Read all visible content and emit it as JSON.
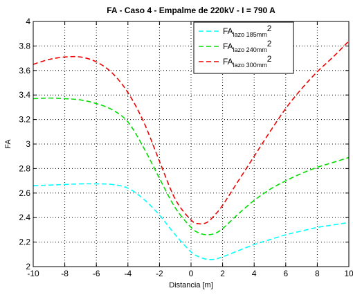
{
  "chart_data": {
    "type": "line",
    "title": "FA - Caso 4 - Empalme de 220kV - I = 790 A",
    "xlabel": "Distancia [m]",
    "ylabel": "FA",
    "xlim": [
      -10,
      10
    ],
    "ylim": [
      2,
      4
    ],
    "xticks": [
      "-10",
      "-8",
      "-6",
      "-4",
      "-2",
      "0",
      "2",
      "4",
      "6",
      "8",
      "10"
    ],
    "yticks": [
      "2",
      "2.2",
      "2.4",
      "2.6",
      "2.8",
      "3",
      "3.2",
      "3.4",
      "3.6",
      "3.8",
      "4"
    ],
    "grid": true,
    "legend_position": "top-right",
    "series": [
      {
        "legend_main": "FA",
        "legend_sub": "lazo 185mm",
        "legend_sup": "2",
        "color": "#00ffff",
        "x": [
          -10,
          -9,
          -8,
          -7,
          -6,
          -5,
          -4,
          -3,
          -2,
          -1,
          0,
          0.5,
          1,
          1.5,
          2,
          3,
          4,
          5,
          6,
          7,
          8,
          9,
          10
        ],
        "y": [
          2.66,
          2.665,
          2.67,
          2.675,
          2.675,
          2.67,
          2.64,
          2.55,
          2.42,
          2.26,
          2.12,
          2.08,
          2.06,
          2.06,
          2.08,
          2.13,
          2.18,
          2.22,
          2.26,
          2.29,
          2.32,
          2.34,
          2.36
        ]
      },
      {
        "legend_main": "FA",
        "legend_sub": "lazo 240mm",
        "legend_sup": "2",
        "color": "#00dd00",
        "x": [
          -10,
          -9,
          -8,
          -7,
          -6,
          -5,
          -4,
          -3,
          -2,
          -1,
          0,
          0.5,
          1,
          1.5,
          2,
          3,
          4,
          5,
          6,
          7,
          8,
          9,
          10
        ],
        "y": [
          3.37,
          3.375,
          3.37,
          3.36,
          3.33,
          3.28,
          3.18,
          2.97,
          2.72,
          2.48,
          2.32,
          2.275,
          2.26,
          2.27,
          2.31,
          2.43,
          2.54,
          2.63,
          2.7,
          2.76,
          2.81,
          2.85,
          2.89
        ]
      },
      {
        "legend_main": "FA",
        "legend_sub": "lazo 300mm",
        "legend_sup": "2",
        "color": "#ee0000",
        "x": [
          -10,
          -9,
          -8,
          -7,
          -6,
          -5,
          -4,
          -3,
          -2,
          -1,
          0,
          0.5,
          1,
          1.5,
          2,
          3,
          4,
          5,
          6,
          7,
          8,
          9,
          10
        ],
        "y": [
          3.65,
          3.69,
          3.71,
          3.71,
          3.67,
          3.58,
          3.42,
          3.18,
          2.86,
          2.55,
          2.38,
          2.35,
          2.36,
          2.42,
          2.5,
          2.7,
          2.9,
          3.1,
          3.29,
          3.45,
          3.59,
          3.71,
          3.84
        ]
      }
    ]
  }
}
